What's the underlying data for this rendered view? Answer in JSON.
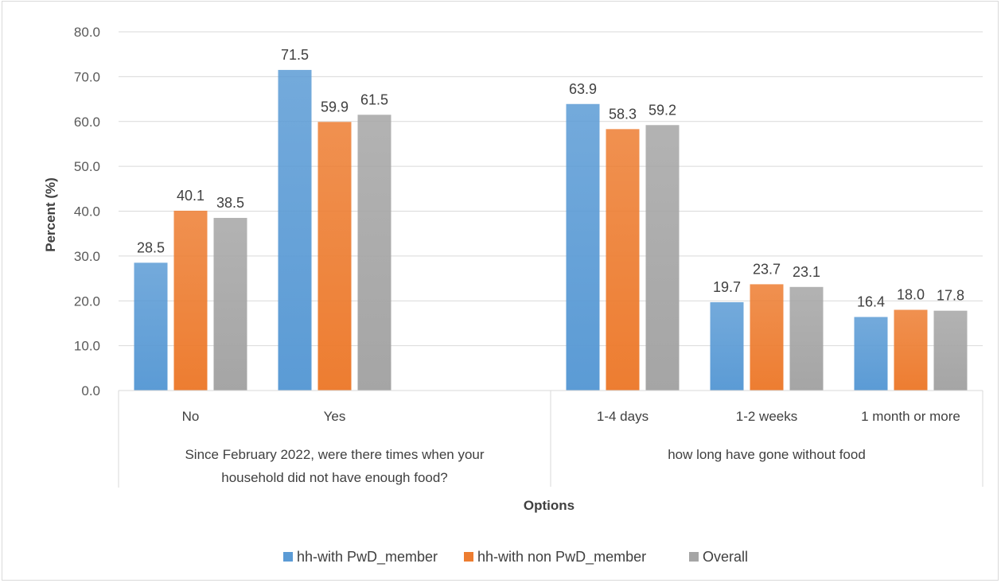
{
  "chart_data": {
    "type": "bar",
    "title": "",
    "ylabel": "Percent (%)",
    "xlabel": "Options",
    "ylim": [
      0,
      80
    ],
    "yticks": [
      "0.0",
      "10.0",
      "20.0",
      "30.0",
      "40.0",
      "50.0",
      "60.0",
      "70.0",
      "80.0"
    ],
    "grid": true,
    "legend_position": "bottom",
    "groups": [
      {
        "label": "Since February 2022, were there times when your household did not have enough food?",
        "label_lines": [
          "Since February 2022, were there times when your",
          "household did not have enough food?"
        ],
        "categories": [
          "No",
          "Yes"
        ]
      },
      {
        "label": "how long have gone without food",
        "label_lines": [
          "how long have gone without food"
        ],
        "categories": [
          "1-4 days",
          "1-2 weeks",
          "1 month or more"
        ]
      }
    ],
    "categories": [
      "No",
      "Yes",
      "1-4 days",
      "1-2 weeks",
      "1 month or more"
    ],
    "series": [
      {
        "name": "hh-with PwD_member",
        "color": "#5b9bd5",
        "values": [
          28.5,
          71.5,
          63.9,
          19.7,
          16.4
        ],
        "labels": [
          "28.5",
          "71.5",
          "63.9",
          "19.7",
          "16.4"
        ]
      },
      {
        "name": "hh-with non PwD_member",
        "color": "#ed7d31",
        "values": [
          40.1,
          59.9,
          58.3,
          23.7,
          18.0
        ],
        "labels": [
          "40.1",
          "59.9",
          "58.3",
          "23.7",
          "18.0"
        ]
      },
      {
        "name": "Overall",
        "color": "#a5a5a5",
        "values": [
          38.5,
          61.5,
          59.2,
          23.1,
          17.8
        ],
        "labels": [
          "38.5",
          "61.5",
          "59.2",
          "23.1",
          "17.8"
        ]
      }
    ]
  }
}
